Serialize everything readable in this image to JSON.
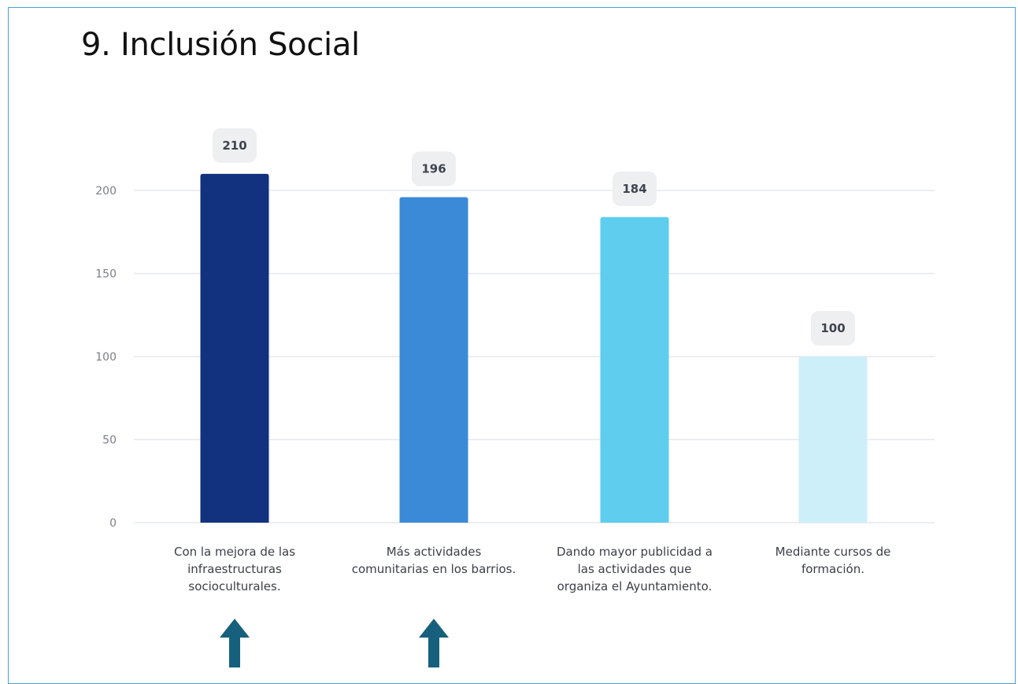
{
  "page": {
    "title": "9. Inclusión Social"
  },
  "colors": {
    "frame_border": "#4a9fd4",
    "gridline": "#e6e8ec",
    "value_badge": "#eeeff1",
    "arrow": "#17607d"
  },
  "chart_data": {
    "type": "bar",
    "title": "9. Inclusión Social",
    "xlabel": "",
    "ylabel": "",
    "ylim": [
      0,
      200
    ],
    "yticks": [
      0,
      50,
      100,
      150,
      200
    ],
    "grid": true,
    "categories": [
      [
        "Con la mejora de las",
        "infraestructuras",
        "socioculturales."
      ],
      [
        "Más actividades",
        "comunitarias en los barrios."
      ],
      [
        "Dando mayor publicidad a",
        "las actividades que",
        "organiza el Ayuntamiento."
      ],
      [
        "Mediante cursos de",
        "formación."
      ]
    ],
    "values": [
      210,
      196,
      184,
      100
    ],
    "bar_colors": [
      "#12317e",
      "#3a8ad8",
      "#5ecdee",
      "#cdeff9"
    ],
    "data_labels": [
      "210",
      "196",
      "184",
      "100"
    ]
  },
  "annotations": {
    "arrows": [
      {
        "points_to_category": 0,
        "icon": "up-arrow-icon"
      },
      {
        "points_to_category": 1,
        "icon": "up-arrow-icon"
      }
    ]
  }
}
